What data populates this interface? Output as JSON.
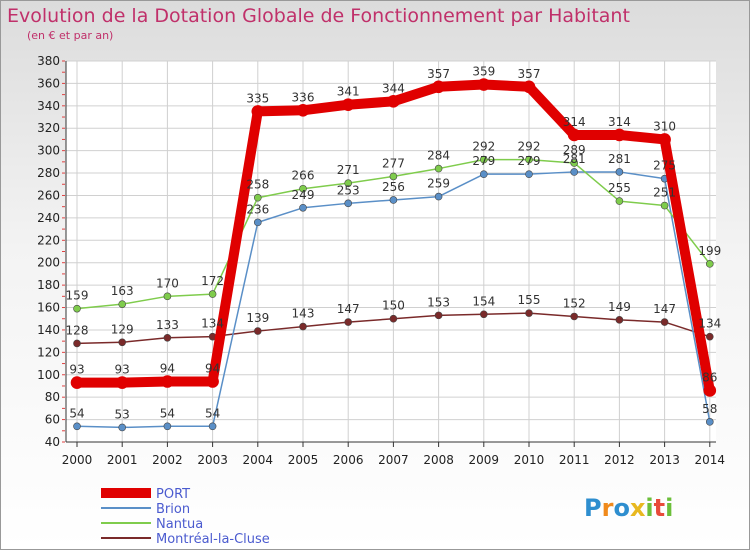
{
  "chart_data": {
    "type": "line",
    "title": "Evolution de la Dotation Globale de Fonctionnement par Habitant",
    "subtitle": "(en € et par an)",
    "x": [
      2000,
      2001,
      2002,
      2003,
      2004,
      2005,
      2006,
      2007,
      2008,
      2009,
      2010,
      2011,
      2012,
      2013,
      2014
    ],
    "ylim": [
      40,
      380
    ],
    "yticks": [
      40,
      60,
      80,
      100,
      120,
      140,
      160,
      180,
      200,
      220,
      240,
      260,
      280,
      300,
      320,
      340,
      360,
      380
    ],
    "grid": true,
    "legend_position": "bottom-left",
    "series": [
      {
        "name": "Montréal-la-Cluse",
        "color": "#7a2a2a",
        "values": [
          128,
          129,
          133,
          134,
          139,
          143,
          147,
          150,
          153,
          154,
          155,
          152,
          149,
          147,
          134
        ]
      },
      {
        "name": "Brion",
        "color": "#5a8fc7",
        "values": [
          54,
          53,
          54,
          54,
          236,
          249,
          253,
          256,
          259,
          279,
          279,
          281,
          281,
          275,
          58
        ]
      },
      {
        "name": "Nantua",
        "color": "#7fcc4c",
        "values": [
          159,
          163,
          170,
          172,
          258,
          266,
          271,
          277,
          284,
          292,
          292,
          289,
          255,
          251,
          199
        ]
      },
      {
        "name": "PORT",
        "color": "#e00000",
        "values": [
          93,
          93,
          94,
          94,
          335,
          336,
          341,
          344,
          357,
          359,
          357,
          314,
          314,
          310,
          86
        ]
      }
    ],
    "legend_order": [
      "PORT",
      "Brion",
      "Nantua",
      "Montréal-la-Cluse"
    ]
  },
  "brand": {
    "logo_text": "Proxiti"
  }
}
